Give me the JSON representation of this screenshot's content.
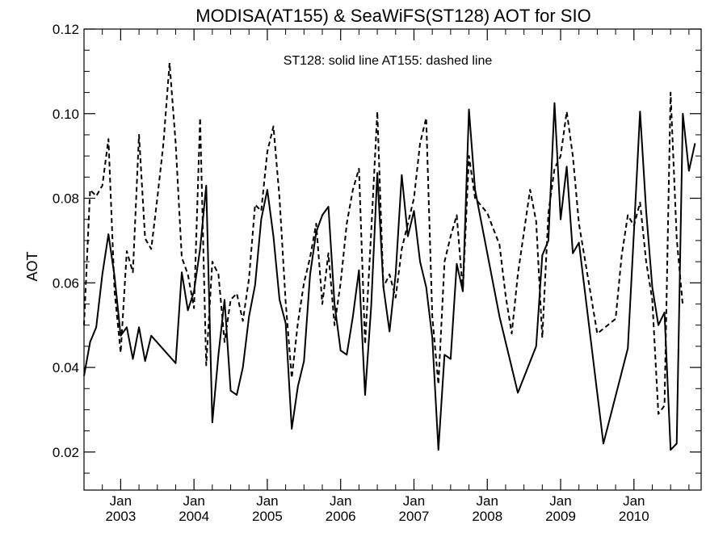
{
  "chart_data": {
    "type": "line",
    "title": "MODISA(AT155) & SeaWiFS(ST128)  AOT for SIO",
    "annotation": "ST128: solid line   AT155: dashed line",
    "ylabel": "AOT",
    "xlabel": "",
    "ylim": [
      0.011,
      0.12
    ],
    "xlim": [
      "2002-07",
      "2010-12"
    ],
    "yticks": [
      0.02,
      0.04,
      0.06,
      0.08,
      0.1,
      0.12
    ],
    "ytick_labels": [
      "0.02",
      "0.04",
      "0.06",
      "0.08",
      "0.10",
      "0.12"
    ],
    "xticks": [
      {
        "date": "2003-01",
        "month": "Jan",
        "year": "2003"
      },
      {
        "date": "2004-01",
        "month": "Jan",
        "year": "2004"
      },
      {
        "date": "2005-01",
        "month": "Jan",
        "year": "2005"
      },
      {
        "date": "2006-01",
        "month": "Jan",
        "year": "2006"
      },
      {
        "date": "2007-01",
        "month": "Jan",
        "year": "2007"
      },
      {
        "date": "2008-01",
        "month": "Jan",
        "year": "2008"
      },
      {
        "date": "2009-01",
        "month": "Jan",
        "year": "2009"
      },
      {
        "date": "2010-01",
        "month": "Jan",
        "year": "2010"
      }
    ],
    "series": [
      {
        "name": "ST128",
        "style": "solid",
        "color": "#000000",
        "points": [
          [
            "2002-07",
            0.038
          ],
          [
            "2002-08",
            0.046
          ],
          [
            "2002-09",
            0.0495
          ],
          [
            "2002-10",
            0.062
          ],
          [
            "2002-11",
            0.0715
          ],
          [
            "2002-12",
            0.0615
          ],
          [
            "2003-01",
            0.0475
          ],
          [
            "2003-02",
            0.0495
          ],
          [
            "2003-03",
            0.042
          ],
          [
            "2003-04",
            0.0495
          ],
          [
            "2003-05",
            0.0415
          ],
          [
            "2003-06",
            0.0475
          ],
          [
            "2003-10",
            0.041
          ],
          [
            "2003-11",
            0.0625
          ],
          [
            "2003-12",
            0.0535
          ],
          [
            "2004-01",
            0.058
          ],
          [
            "2004-02",
            0.068
          ],
          [
            "2004-03",
            0.083
          ],
          [
            "2004-04",
            0.027
          ],
          [
            "2004-05",
            0.043
          ],
          [
            "2004-06",
            0.056
          ],
          [
            "2004-07",
            0.0345
          ],
          [
            "2004-08",
            0.0335
          ],
          [
            "2004-09",
            0.04
          ],
          [
            "2004-10",
            0.052
          ],
          [
            "2004-11",
            0.0595
          ],
          [
            "2004-12",
            0.075
          ],
          [
            "2005-01",
            0.082
          ],
          [
            "2005-02",
            0.071
          ],
          [
            "2005-03",
            0.056
          ],
          [
            "2005-04",
            0.0505
          ],
          [
            "2005-05",
            0.0255
          ],
          [
            "2005-06",
            0.0355
          ],
          [
            "2005-07",
            0.0415
          ],
          [
            "2005-08",
            0.062
          ],
          [
            "2005-09",
            0.072
          ],
          [
            "2005-10",
            0.076
          ],
          [
            "2005-11",
            0.078
          ],
          [
            "2005-12",
            0.055
          ],
          [
            "2006-01",
            0.044
          ],
          [
            "2006-02",
            0.043
          ],
          [
            "2006-03",
            0.052
          ],
          [
            "2006-04",
            0.063
          ],
          [
            "2006-05",
            0.0335
          ],
          [
            "2006-06",
            0.0545
          ],
          [
            "2006-07",
            0.086
          ],
          [
            "2006-08",
            0.059
          ],
          [
            "2006-09",
            0.0485
          ],
          [
            "2006-10",
            0.062
          ],
          [
            "2006-11",
            0.0855
          ],
          [
            "2006-12",
            0.071
          ],
          [
            "2007-01",
            0.077
          ],
          [
            "2007-02",
            0.065
          ],
          [
            "2007-03",
            0.059
          ],
          [
            "2007-04",
            0.047
          ],
          [
            "2007-05",
            0.0205
          ],
          [
            "2007-06",
            0.043
          ],
          [
            "2007-07",
            0.042
          ],
          [
            "2007-08",
            0.0645
          ],
          [
            "2007-09",
            0.058
          ],
          [
            "2007-10",
            0.101
          ],
          [
            "2007-11",
            0.082
          ],
          [
            "2008-03",
            0.052
          ],
          [
            "2008-06",
            0.034
          ],
          [
            "2008-09",
            0.045
          ],
          [
            "2008-10",
            0.0665
          ],
          [
            "2008-11",
            0.07
          ],
          [
            "2008-12",
            0.1025
          ],
          [
            "2009-01",
            0.075
          ],
          [
            "2009-02",
            0.0875
          ],
          [
            "2009-03",
            0.067
          ],
          [
            "2009-04",
            0.0695
          ],
          [
            "2009-08",
            0.022
          ],
          [
            "2009-12",
            0.0445
          ],
          [
            "2010-01",
            0.072
          ],
          [
            "2010-02",
            0.1005
          ],
          [
            "2010-03",
            0.077
          ],
          [
            "2010-04",
            0.059
          ],
          [
            "2010-05",
            0.05
          ],
          [
            "2010-06",
            0.053
          ],
          [
            "2010-07",
            0.0205
          ],
          [
            "2010-08",
            0.022
          ],
          [
            "2010-09",
            0.1
          ],
          [
            "2010-10",
            0.0865
          ],
          [
            "2010-11",
            0.093
          ]
        ]
      },
      {
        "name": "AT155",
        "style": "dashed",
        "color": "#000000",
        "points": [
          [
            "2002-07",
            0.05
          ],
          [
            "2002-08",
            0.082
          ],
          [
            "2002-09",
            0.0805
          ],
          [
            "2002-10",
            0.083
          ],
          [
            "2002-11",
            0.094
          ],
          [
            "2002-12",
            0.058
          ],
          [
            "2003-01",
            0.0435
          ],
          [
            "2003-02",
            0.0675
          ],
          [
            "2003-03",
            0.0625
          ],
          [
            "2003-04",
            0.095
          ],
          [
            "2003-05",
            0.0705
          ],
          [
            "2003-06",
            0.068
          ],
          [
            "2003-07",
            0.08
          ],
          [
            "2003-08",
            0.093
          ],
          [
            "2003-09",
            0.112
          ],
          [
            "2003-10",
            0.093
          ],
          [
            "2003-11",
            0.066
          ],
          [
            "2003-12",
            0.062
          ],
          [
            "2004-01",
            0.054
          ],
          [
            "2004-02",
            0.099
          ],
          [
            "2004-03",
            0.0405
          ],
          [
            "2004-04",
            0.065
          ],
          [
            "2004-05",
            0.062
          ],
          [
            "2004-06",
            0.046
          ],
          [
            "2004-07",
            0.056
          ],
          [
            "2004-08",
            0.0575
          ],
          [
            "2004-09",
            0.051
          ],
          [
            "2004-10",
            0.061
          ],
          [
            "2004-11",
            0.0785
          ],
          [
            "2004-12",
            0.077
          ],
          [
            "2005-01",
            0.091
          ],
          [
            "2005-02",
            0.097
          ],
          [
            "2005-03",
            0.08
          ],
          [
            "2005-04",
            0.0555
          ],
          [
            "2005-05",
            0.0375
          ],
          [
            "2005-06",
            0.0505
          ],
          [
            "2005-07",
            0.06
          ],
          [
            "2005-08",
            0.066
          ],
          [
            "2005-09",
            0.074
          ],
          [
            "2005-10",
            0.055
          ],
          [
            "2005-11",
            0.067
          ],
          [
            "2005-12",
            0.05
          ],
          [
            "2006-01",
            0.06
          ],
          [
            "2006-02",
            0.074
          ],
          [
            "2006-03",
            0.082
          ],
          [
            "2006-04",
            0.087
          ],
          [
            "2006-05",
            0.0455
          ],
          [
            "2006-06",
            0.072
          ],
          [
            "2006-07",
            0.1005
          ],
          [
            "2006-08",
            0.059
          ],
          [
            "2006-09",
            0.062
          ],
          [
            "2006-10",
            0.0565
          ],
          [
            "2006-11",
            0.068
          ],
          [
            "2006-12",
            0.074
          ],
          [
            "2007-01",
            0.08
          ],
          [
            "2007-02",
            0.093
          ],
          [
            "2007-03",
            0.099
          ],
          [
            "2007-04",
            0.052
          ],
          [
            "2007-05",
            0.036
          ],
          [
            "2007-06",
            0.065
          ],
          [
            "2007-07",
            0.071
          ],
          [
            "2007-08",
            0.076
          ],
          [
            "2007-09",
            0.058
          ],
          [
            "2007-10",
            0.09
          ],
          [
            "2007-11",
            0.08
          ],
          [
            "2008-01",
            0.0765
          ],
          [
            "2008-03",
            0.069
          ],
          [
            "2008-04",
            0.057
          ],
          [
            "2008-05",
            0.048
          ],
          [
            "2008-06",
            0.062
          ],
          [
            "2008-08",
            0.082
          ],
          [
            "2008-09",
            0.0745
          ],
          [
            "2008-10",
            0.047
          ],
          [
            "2008-11",
            0.0765
          ],
          [
            "2008-12",
            0.087
          ],
          [
            "2009-01",
            0.09
          ],
          [
            "2009-02",
            0.1005
          ],
          [
            "2009-03",
            0.09
          ],
          [
            "2009-04",
            0.074
          ],
          [
            "2009-07",
            0.048
          ],
          [
            "2009-10",
            0.0515
          ],
          [
            "2009-11",
            0.0665
          ],
          [
            "2009-12",
            0.076
          ],
          [
            "2010-01",
            0.0735
          ],
          [
            "2010-02",
            0.079
          ],
          [
            "2010-03",
            0.065
          ],
          [
            "2010-04",
            0.056
          ],
          [
            "2010-05",
            0.029
          ],
          [
            "2010-06",
            0.031
          ],
          [
            "2010-07",
            0.105
          ],
          [
            "2010-08",
            0.0705
          ],
          [
            "2010-09",
            0.0545
          ]
        ]
      }
    ]
  }
}
